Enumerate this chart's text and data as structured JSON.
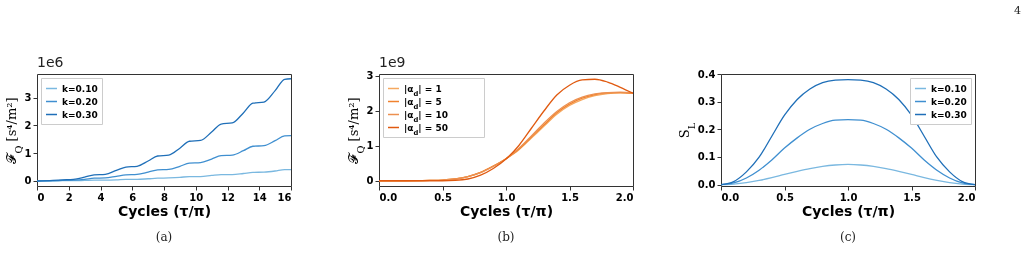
{
  "chart_data": [
    {
      "type": "line",
      "xlabel": "Cycles  (τ/π)",
      "ylabel": "𝓕$_{Q}$  [s⁴/m²]",
      "annotations": [
        "1e6",
        "(a)"
      ],
      "xlim": [
        0,
        16
      ],
      "xticks": [
        0,
        2,
        4,
        6,
        8,
        10,
        12,
        14,
        16
      ],
      "ylim": [
        -0.18,
        3.85
      ],
      "yticks": [
        0,
        1,
        2,
        3
      ],
      "grid": false,
      "legend": "top left",
      "x": [
        0,
        1,
        1.6,
        2.3,
        3,
        3.6,
        4.3,
        5,
        5.6,
        6.3,
        7,
        7.6,
        8.3,
        9,
        9.6,
        10.3,
        11,
        11.6,
        12.3,
        13,
        13.6,
        14.3,
        15,
        15.6,
        16
      ],
      "series": [
        {
          "name": "k=0.10",
          "color": "#7ab8e0",
          "values": [
            0,
            0,
            0.01,
            0.01,
            0.02,
            0.03,
            0.03,
            0.04,
            0.06,
            0.06,
            0.08,
            0.1,
            0.11,
            0.13,
            0.16,
            0.16,
            0.2,
            0.23,
            0.23,
            0.27,
            0.31,
            0.32,
            0.36,
            0.41,
            0.41
          ]
        },
        {
          "name": "k=0.20",
          "color": "#3f8fd0",
          "values": [
            0,
            0.01,
            0.02,
            0.03,
            0.06,
            0.1,
            0.11,
            0.17,
            0.22,
            0.24,
            0.32,
            0.4,
            0.42,
            0.53,
            0.64,
            0.66,
            0.79,
            0.91,
            0.93,
            1.09,
            1.25,
            1.27,
            1.45,
            1.62,
            1.63
          ]
        },
        {
          "name": "k=0.30",
          "color": "#1f6fb8",
          "values": [
            0,
            0.02,
            0.04,
            0.06,
            0.14,
            0.22,
            0.24,
            0.38,
            0.5,
            0.53,
            0.72,
            0.9,
            0.93,
            1.18,
            1.43,
            1.46,
            1.76,
            2.05,
            2.09,
            2.45,
            2.8,
            2.84,
            3.25,
            3.66,
            3.68
          ]
        }
      ]
    },
    {
      "type": "line",
      "xlabel": "Cycles  (τ/π)",
      "ylabel": "𝓕$_{Q}$  [s⁴/m²]",
      "annotations": [
        "1e9",
        "(b)"
      ],
      "xlim": [
        0,
        2
      ],
      "xticks": [
        {
          "value": 0,
          "label": "0.0"
        },
        {
          "value": 0.5,
          "label": "0.5"
        },
        {
          "value": 1,
          "label": "1.0"
        },
        {
          "value": 1.5,
          "label": "1.5"
        },
        {
          "value": 2,
          "label": "2.0"
        }
      ],
      "ylim": [
        -0.15,
        3.05
      ],
      "yticks": [
        0,
        1,
        2,
        3
      ],
      "grid": false,
      "legend": "top left",
      "x": [
        0,
        0.2,
        0.4,
        0.5,
        0.6,
        0.7,
        0.8,
        0.9,
        1.0,
        1.1,
        1.2,
        1.3,
        1.4,
        1.5,
        1.6,
        1.7,
        1.8,
        1.9,
        2.0
      ],
      "series": [
        {
          "name": "|α$_{d}$| = 1",
          "color": "#f5a85f",
          "values": [
            0,
            0,
            0.01,
            0.02,
            0.05,
            0.12,
            0.24,
            0.42,
            0.63,
            0.88,
            1.22,
            1.56,
            1.9,
            2.15,
            2.32,
            2.43,
            2.49,
            2.51,
            2.5
          ]
        },
        {
          "name": "|α$_{d}$| = 5",
          "color": "#f0822e",
          "values": [
            0,
            0,
            0.01,
            0.02,
            0.05,
            0.12,
            0.24,
            0.42,
            0.63,
            0.9,
            1.25,
            1.6,
            1.94,
            2.19,
            2.36,
            2.46,
            2.51,
            2.52,
            2.5
          ]
        },
        {
          "name": "|α$_{d}$| = 10",
          "color": "#ec9050",
          "values": [
            0,
            0,
            0.01,
            0.02,
            0.05,
            0.12,
            0.23,
            0.41,
            0.63,
            0.92,
            1.28,
            1.65,
            1.98,
            2.23,
            2.39,
            2.48,
            2.52,
            2.53,
            2.5
          ]
        },
        {
          "name": "|α$_{d}$| = 50",
          "color": "#e05a10",
          "values": [
            0,
            0,
            0,
            0,
            0.01,
            0.05,
            0.16,
            0.35,
            0.62,
            1.0,
            1.5,
            2.0,
            2.45,
            2.73,
            2.88,
            2.9,
            2.82,
            2.67,
            2.5
          ]
        }
      ]
    },
    {
      "type": "line",
      "xlabel": "Cycles  (τ/π)",
      "ylabel": "S$_{L}$",
      "annotations": [
        "4",
        "(c)"
      ],
      "xlim": [
        0,
        2
      ],
      "xticks": [
        {
          "value": 0,
          "label": "0.0"
        },
        {
          "value": 0.5,
          "label": "0.5"
        },
        {
          "value": 1,
          "label": "1.0"
        },
        {
          "value": 1.5,
          "label": "1.5"
        },
        {
          "value": 2,
          "label": "2.0"
        }
      ],
      "ylim": [
        -0.005,
        0.4
      ],
      "yticks": [
        {
          "value": 0,
          "label": "0.0"
        },
        0.1,
        0.2,
        0.3,
        0.4
      ],
      "grid": false,
      "legend": "top right",
      "x": [
        0,
        0.1,
        0.2,
        0.3,
        0.4,
        0.5,
        0.6,
        0.7,
        0.8,
        0.9,
        1.0,
        1.1,
        1.2,
        1.3,
        1.4,
        1.5,
        1.6,
        1.7,
        1.8,
        1.9,
        2.0
      ],
      "series": [
        {
          "name": "k=0.10",
          "color": "#7ab8e0",
          "values": [
            0,
            0.002,
            0.007,
            0.015,
            0.025,
            0.037,
            0.048,
            0.058,
            0.066,
            0.071,
            0.073,
            0.071,
            0.066,
            0.058,
            0.048,
            0.037,
            0.025,
            0.015,
            0.007,
            0.002,
            0
          ]
        },
        {
          "name": "k=0.20",
          "color": "#3f8fd0",
          "values": [
            0,
            0.006,
            0.024,
            0.052,
            0.089,
            0.132,
            0.169,
            0.2,
            0.221,
            0.233,
            0.235,
            0.233,
            0.221,
            0.2,
            0.169,
            0.132,
            0.089,
            0.052,
            0.024,
            0.006,
            0
          ]
        },
        {
          "name": "k=0.30",
          "color": "#1f6fb8",
          "values": [
            0,
            0.011,
            0.046,
            0.099,
            0.175,
            0.251,
            0.308,
            0.346,
            0.369,
            0.378,
            0.38,
            0.378,
            0.369,
            0.346,
            0.308,
            0.251,
            0.175,
            0.099,
            0.046,
            0.011,
            0
          ]
        }
      ]
    }
  ]
}
